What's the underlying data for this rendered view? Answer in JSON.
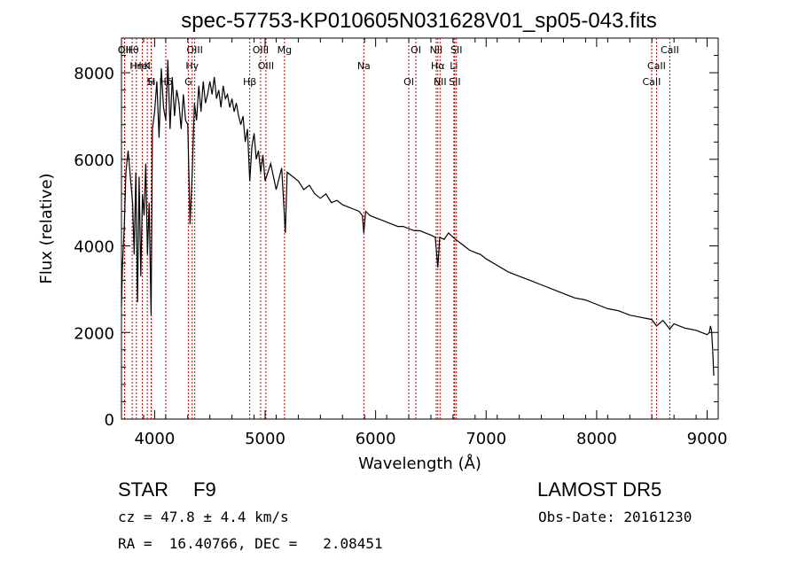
{
  "chart_data": {
    "type": "line",
    "title": "spec-57753-KP010605N031628V01_sp05-043.fits",
    "xlabel": "Wavelength (Å)",
    "ylabel": "Flux (relative)",
    "xlim": [
      3700,
      9100
    ],
    "ylim": [
      0,
      8800
    ],
    "xticks": [
      4000,
      5000,
      6000,
      7000,
      8000,
      9000
    ],
    "yticks": [
      0,
      2000,
      4000,
      6000,
      8000
    ],
    "grid": false,
    "line_color": "#000000",
    "marker_color": "#cc0000",
    "series": [
      {
        "x": [
          3700,
          3710,
          3725,
          3740,
          3760,
          3780,
          3800,
          3815,
          3830,
          3845,
          3860,
          3875,
          3890,
          3905,
          3920,
          3935,
          3950,
          3968,
          3980,
          4000,
          4020,
          4040,
          4060,
          4080,
          4101,
          4120,
          4140,
          4160,
          4180,
          4200,
          4220,
          4240,
          4260,
          4280,
          4300,
          4320,
          4340,
          4360,
          4380,
          4400,
          4420,
          4440,
          4460,
          4480,
          4500,
          4520,
          4540,
          4560,
          4580,
          4600,
          4620,
          4640,
          4660,
          4680,
          4700,
          4720,
          4740,
          4760,
          4780,
          4800,
          4820,
          4840,
          4861,
          4880,
          4900,
          4920,
          4940,
          4960,
          4980,
          5000,
          5050,
          5100,
          5150,
          5170,
          5183,
          5200,
          5250,
          5300,
          5350,
          5400,
          5450,
          5500,
          5550,
          5600,
          5650,
          5700,
          5750,
          5800,
          5850,
          5880,
          5893,
          5910,
          5950,
          6000,
          6050,
          6100,
          6150,
          6200,
          6250,
          6300,
          6350,
          6400,
          6450,
          6500,
          6540,
          6563,
          6580,
          6620,
          6660,
          6700,
          6750,
          6800,
          6850,
          6900,
          6950,
          7000,
          7100,
          7200,
          7300,
          7400,
          7500,
          7600,
          7700,
          7800,
          7900,
          8000,
          8100,
          8200,
          8300,
          8400,
          8498,
          8542,
          8600,
          8662,
          8700,
          8800,
          8900,
          8950,
          9000,
          9020,
          9030,
          9040,
          9050,
          9060
        ],
        "y": [
          2600,
          3600,
          4400,
          5700,
          6200,
          5600,
          5000,
          3800,
          5700,
          2700,
          5600,
          3300,
          5200,
          4700,
          5900,
          3800,
          5000,
          2400,
          6700,
          7100,
          7800,
          6500,
          8100,
          7200,
          6900,
          8300,
          6700,
          7900,
          7000,
          7600,
          7300,
          6700,
          7500,
          6900,
          6800,
          4500,
          5700,
          7300,
          6900,
          7700,
          7100,
          7800,
          7300,
          7500,
          7800,
          7500,
          7900,
          7400,
          7600,
          7200,
          7700,
          7400,
          7500,
          7200,
          7400,
          7100,
          7300,
          7000,
          6800,
          7000,
          6400,
          6700,
          5500,
          6300,
          6600,
          6000,
          6200,
          5700,
          6100,
          5500,
          5900,
          5300,
          5800,
          4900,
          4300,
          5700,
          5600,
          5500,
          5300,
          5400,
          5200,
          5100,
          5200,
          5000,
          5050,
          4950,
          4900,
          4850,
          4800,
          4700,
          4300,
          4800,
          4700,
          4650,
          4600,
          4550,
          4500,
          4450,
          4450,
          4400,
          4350,
          4350,
          4300,
          4250,
          4200,
          3500,
          4200,
          4150,
          4300,
          4200,
          4100,
          4000,
          3900,
          3850,
          3800,
          3700,
          3550,
          3400,
          3300,
          3200,
          3100,
          3000,
          2900,
          2800,
          2750,
          2650,
          2550,
          2500,
          2400,
          2350,
          2300,
          2150,
          2280,
          2080,
          2200,
          2100,
          2050,
          2000,
          1950,
          2000,
          2150,
          2050,
          1600,
          1000
        ]
      }
    ],
    "line_markers": [
      {
        "label": "Hθ",
        "wavelength": 3797
      },
      {
        "label": "K",
        "wavelength": 3934
      },
      {
        "label": "Hδ",
        "wavelength": 4101
      },
      {
        "label": "OII",
        "wavelength": 3727
      },
      {
        "label": "HeI",
        "wavelength": 3889
      },
      {
        "label": "Si",
        "wavelength": 3968
      },
      {
        "label": "OII",
        "wavelength": 3729
      },
      {
        "label": "Hη",
        "wavelength": 3835
      },
      {
        "label": "H",
        "wavelength": 3970
      },
      {
        "label": "OIII",
        "wavelength": 4363
      },
      {
        "label": "Hγ",
        "wavelength": 4340
      },
      {
        "label": "G",
        "wavelength": 4305
      },
      {
        "label": "OIII",
        "wavelength": 4959
      },
      {
        "label": "OIII",
        "wavelength": 5007
      },
      {
        "label": "Hβ",
        "wavelength": 4861
      },
      {
        "label": "Mg",
        "wavelength": 5175
      },
      {
        "label": "Na",
        "wavelength": 5893
      },
      {
        "label": "OI",
        "wavelength": 6300
      },
      {
        "label": "OI",
        "wavelength": 6364
      },
      {
        "label": "Hα",
        "wavelength": 6563
      },
      {
        "label": "SII",
        "wavelength": 6716
      },
      {
        "label": "NII",
        "wavelength": 6548
      },
      {
        "label": "Li",
        "wavelength": 6708
      },
      {
        "label": "NII",
        "wavelength": 6583
      },
      {
        "label": "SII",
        "wavelength": 6731
      },
      {
        "label": "CaII",
        "wavelength": 8542
      },
      {
        "label": "CaII",
        "wavelength": 8498
      },
      {
        "label": "CaII",
        "wavelength": 8662
      }
    ]
  },
  "info": {
    "class_label": "STAR",
    "subclass": "F9",
    "survey": "LAMOST DR5",
    "cz": "cz = 47.8 ± 4.4 km/s",
    "obs_date": "Obs-Date: 20161230",
    "radec": "RA =  16.40766, DEC =   2.08451"
  }
}
